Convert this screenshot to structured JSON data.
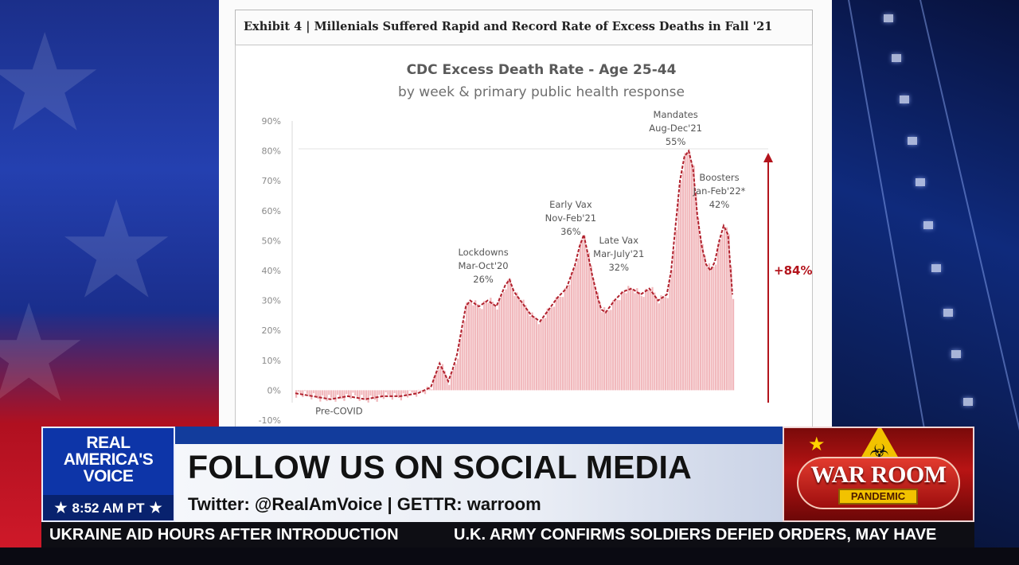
{
  "exhibit_title": "Exhibit 4 | Millenials Suffered Rapid and Record Rate of Excess Deaths in Fall '21",
  "chart_data": {
    "type": "line",
    "title": "CDC Excess Death Rate - Age 25-44",
    "subtitle": "by week & primary public health response",
    "ylim": [
      -10,
      90
    ],
    "yticks": [
      "-10%",
      "0%",
      "10%",
      "20%",
      "30%",
      "40%",
      "50%",
      "60%",
      "70%",
      "80%",
      "90%"
    ],
    "x_index_range": [
      0,
      100
    ],
    "series": [
      {
        "kind": "line+bars",
        "points": [
          [
            0,
            -1
          ],
          [
            4,
            -2
          ],
          [
            8,
            -3
          ],
          [
            12,
            -2
          ],
          [
            16,
            -3
          ],
          [
            20,
            -2
          ],
          [
            24,
            -2
          ],
          [
            28,
            -1
          ],
          [
            31,
            1
          ],
          [
            32,
            5
          ],
          [
            33,
            9
          ],
          [
            34,
            6
          ],
          [
            35,
            3
          ],
          [
            36,
            7
          ],
          [
            37,
            12
          ],
          [
            38,
            20
          ],
          [
            39,
            28
          ],
          [
            40,
            30
          ],
          [
            42,
            28
          ],
          [
            44,
            30
          ],
          [
            46,
            28
          ],
          [
            48,
            35
          ],
          [
            49,
            37
          ],
          [
            50,
            33
          ],
          [
            52,
            29
          ],
          [
            54,
            25
          ],
          [
            56,
            23
          ],
          [
            58,
            27
          ],
          [
            60,
            31
          ],
          [
            62,
            34
          ],
          [
            64,
            42
          ],
          [
            65,
            48
          ],
          [
            66,
            52
          ],
          [
            67,
            45
          ],
          [
            68,
            38
          ],
          [
            69,
            32
          ],
          [
            70,
            27
          ],
          [
            71,
            26
          ],
          [
            73,
            30
          ],
          [
            75,
            33
          ],
          [
            77,
            34
          ],
          [
            79,
            32
          ],
          [
            81,
            34
          ],
          [
            83,
            30
          ],
          [
            85,
            32
          ],
          [
            86,
            40
          ],
          [
            87,
            55
          ],
          [
            88,
            70
          ],
          [
            89,
            78
          ],
          [
            90,
            80
          ],
          [
            91,
            74
          ],
          [
            92,
            58
          ],
          [
            93,
            48
          ],
          [
            94,
            42
          ],
          [
            95,
            40
          ],
          [
            96,
            43
          ],
          [
            97,
            50
          ],
          [
            98,
            55
          ],
          [
            99,
            52
          ],
          [
            100,
            32
          ]
        ]
      }
    ],
    "annotations": [
      {
        "lines": [
          "Lockdowns",
          "Mar-Oct'20",
          "26%"
        ],
        "x": 43,
        "y": 36
      },
      {
        "lines": [
          "Early Vax",
          "Nov-Feb'21",
          "36%"
        ],
        "x": 63,
        "y": 52
      },
      {
        "lines": [
          "Late Vax",
          "Mar-July'21",
          "32%"
        ],
        "x": 74,
        "y": 40
      },
      {
        "lines": [
          "Mandates",
          "Aug-Dec'21",
          "55%"
        ],
        "x": 87,
        "y": 82
      },
      {
        "lines": [
          "Boosters",
          "Jan-Feb'22*",
          "42%"
        ],
        "x": 97,
        "y": 61
      },
      {
        "lines": [
          "Pre-COVID"
        ],
        "x": 10,
        "y": -8
      }
    ],
    "increase_label": "+84%",
    "colors": {
      "line": "#b0202c",
      "bars": "#f1b8bc",
      "arrow": "#b3141c",
      "text": "#555555"
    }
  },
  "lower_third": {
    "logo_lines": [
      "REAL",
      "AMERICA'S",
      "VOICE"
    ],
    "time": "8:52 AM PT",
    "headline": "FOLLOW US ON SOCIAL MEDIA",
    "subline": "Twitter: @RealAmVoice | GETTR: warroom",
    "warroom_title": "WAR ROOM",
    "warroom_sub": "PANDEMIC",
    "colors": {
      "logo": "#0d35a8",
      "banner_top": "#123c9c",
      "warroom": "#b81414",
      "gold": "#f2c200"
    }
  },
  "ticker": {
    "items": [
      "UKRAINE AID HOURS AFTER INTRODUCTION",
      "U.K. ARMY CONFIRMS SOLDIERS DEFIED ORDERS, MAY HAVE"
    ]
  }
}
